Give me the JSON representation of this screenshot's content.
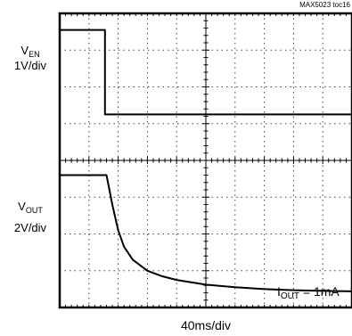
{
  "chart_data": {
    "type": "line",
    "figure_id": "MAX5023 toc16",
    "xlabel": "40ms/div",
    "annotation": {
      "main": "I",
      "sub": "OUT",
      "rest": " = 1mA"
    },
    "grid": true,
    "divisions": {
      "x": 10,
      "y": 8
    },
    "traces": [
      {
        "name_main": "V",
        "name_sub": "EN",
        "scale": "1V/div",
        "x_div": [
          0,
          1.55,
          1.55,
          10
        ],
        "y_div": [
          7.55,
          7.55,
          5.25,
          5.25
        ]
      },
      {
        "name_main": "V",
        "name_sub": "OUT",
        "scale": "2V/div",
        "x_div": [
          0,
          1.6,
          1.7,
          1.8,
          2.0,
          2.2,
          2.5,
          3.0,
          3.5,
          4.0,
          5.0,
          6.0,
          7.0,
          8.0,
          9.0,
          10.0
        ],
        "y_div": [
          3.6,
          3.6,
          3.2,
          2.8,
          2.1,
          1.65,
          1.3,
          1.0,
          0.85,
          0.75,
          0.62,
          0.55,
          0.5,
          0.47,
          0.45,
          0.44
        ]
      }
    ]
  }
}
